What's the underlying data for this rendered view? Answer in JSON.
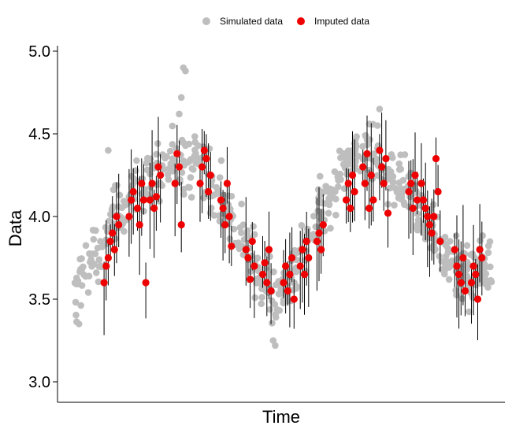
{
  "chart_data": {
    "type": "scatter",
    "xlabel": "Time",
    "ylabel": "Data",
    "ylim": [
      2.9,
      5.05
    ],
    "yticks": [
      3.0,
      3.5,
      4.0,
      4.5,
      5.0
    ],
    "ytick_labels": [
      "3.0",
      "3.5",
      "4.0",
      "4.5",
      "5.0"
    ],
    "x_ticks_shown": false,
    "grid": false,
    "legend_position": "top",
    "series": [
      {
        "name": "Simulated data",
        "color": "#bebebe",
        "marker": "circle",
        "description_points": "trend curve (time 0..100) sampled densely with noise",
        "trend": [
          [
            0,
            3.55
          ],
          [
            5,
            3.8
          ],
          [
            10,
            4.0
          ],
          [
            15,
            4.15
          ],
          [
            20,
            4.25
          ],
          [
            25,
            4.35
          ],
          [
            30,
            4.28
          ],
          [
            35,
            4.1
          ],
          [
            40,
            3.85
          ],
          [
            45,
            3.62
          ],
          [
            48,
            3.5
          ],
          [
            50,
            3.55
          ],
          [
            55,
            3.8
          ],
          [
            60,
            4.1
          ],
          [
            65,
            4.3
          ],
          [
            70,
            4.4
          ],
          [
            75,
            4.3
          ],
          [
            80,
            4.15
          ],
          [
            85,
            3.95
          ],
          [
            90,
            3.75
          ],
          [
            95,
            3.65
          ],
          [
            100,
            3.7
          ]
        ],
        "outliers": [
          [
            26,
            4.9
          ],
          [
            26.5,
            4.88
          ],
          [
            25.5,
            4.72
          ],
          [
            25,
            4.62
          ],
          [
            73,
            4.65
          ],
          [
            72.5,
            4.55
          ],
          [
            8,
            4.4
          ],
          [
            48,
            3.22
          ],
          [
            47.5,
            3.25
          ],
          [
            1,
            3.35
          ]
        ]
      },
      {
        "name": "Imputed data",
        "color": "#ee0000",
        "marker": "circle",
        "error_bars": true,
        "points": [
          [
            7,
            3.6
          ],
          [
            7.5,
            3.7
          ],
          [
            8,
            3.75
          ],
          [
            8.5,
            3.85
          ],
          [
            9,
            3.9
          ],
          [
            9.5,
            3.8
          ],
          [
            10,
            4.0
          ],
          [
            10.5,
            3.95
          ],
          [
            13,
            4.0
          ],
          [
            13.5,
            4.1
          ],
          [
            14,
            4.15
          ],
          [
            15,
            4.05
          ],
          [
            15.5,
            3.95
          ],
          [
            16,
            4.2
          ],
          [
            16.5,
            4.1
          ],
          [
            17,
            3.6
          ],
          [
            18,
            4.1
          ],
          [
            18.5,
            4.2
          ],
          [
            19,
            4.05
          ],
          [
            19.5,
            4.12
          ],
          [
            20,
            4.3
          ],
          [
            20.5,
            4.25
          ],
          [
            24,
            4.2
          ],
          [
            24.5,
            4.38
          ],
          [
            25,
            4.3
          ],
          [
            25.5,
            3.95
          ],
          [
            30,
            4.2
          ],
          [
            30.5,
            4.3
          ],
          [
            31,
            4.4
          ],
          [
            31.5,
            4.35
          ],
          [
            32,
            4.15
          ],
          [
            32.5,
            4.25
          ],
          [
            35,
            4.1
          ],
          [
            35.5,
            4.05
          ],
          [
            36,
            3.95
          ],
          [
            36.5,
            4.2
          ],
          [
            37,
            4.0
          ],
          [
            37.5,
            3.82
          ],
          [
            41,
            3.8
          ],
          [
            41.5,
            3.75
          ],
          [
            42,
            3.62
          ],
          [
            42.5,
            3.85
          ],
          [
            43,
            3.7
          ],
          [
            45,
            3.65
          ],
          [
            45.5,
            3.72
          ],
          [
            46,
            3.6
          ],
          [
            46.5,
            3.8
          ],
          [
            47,
            3.55
          ],
          [
            50,
            3.6
          ],
          [
            50.5,
            3.7
          ],
          [
            51,
            3.55
          ],
          [
            51.5,
            3.65
          ],
          [
            52,
            3.75
          ],
          [
            52.5,
            3.5
          ],
          [
            54,
            3.7
          ],
          [
            54.5,
            3.8
          ],
          [
            55,
            3.65
          ],
          [
            55.5,
            3.85
          ],
          [
            56,
            3.75
          ],
          [
            58,
            3.85
          ],
          [
            58.5,
            3.9
          ],
          [
            59,
            3.8
          ],
          [
            59.5,
            3.95
          ],
          [
            65,
            4.1
          ],
          [
            65.5,
            4.2
          ],
          [
            66,
            4.05
          ],
          [
            66.5,
            4.25
          ],
          [
            67,
            4.15
          ],
          [
            69,
            4.3
          ],
          [
            69.5,
            4.2
          ],
          [
            70,
            4.38
          ],
          [
            70.5,
            4.05
          ],
          [
            71,
            4.25
          ],
          [
            71.5,
            4.1
          ],
          [
            73,
            4.4
          ],
          [
            73.5,
            4.3
          ],
          [
            74,
            4.2
          ],
          [
            74.5,
            4.35
          ],
          [
            75,
            4.02
          ],
          [
            80,
            4.15
          ],
          [
            80.5,
            4.2
          ],
          [
            81,
            4.05
          ],
          [
            81.5,
            4.25
          ],
          [
            82,
            4.1
          ],
          [
            83,
            4.2
          ],
          [
            83.5,
            4.1
          ],
          [
            84,
            4.05
          ],
          [
            84.5,
            4.0
          ],
          [
            85,
            3.95
          ],
          [
            85.5,
            3.9
          ],
          [
            86,
            4.0
          ],
          [
            86.5,
            4.35
          ],
          [
            87,
            4.15
          ],
          [
            87.5,
            3.85
          ],
          [
            91,
            3.8
          ],
          [
            91.5,
            3.7
          ],
          [
            92,
            3.65
          ],
          [
            92.5,
            3.6
          ],
          [
            93,
            3.75
          ],
          [
            93.5,
            3.55
          ],
          [
            95,
            3.6
          ],
          [
            95.5,
            3.7
          ],
          [
            96,
            3.65
          ],
          [
            96.5,
            3.5
          ],
          [
            97,
            3.8
          ],
          [
            97.5,
            3.75
          ]
        ]
      }
    ]
  }
}
